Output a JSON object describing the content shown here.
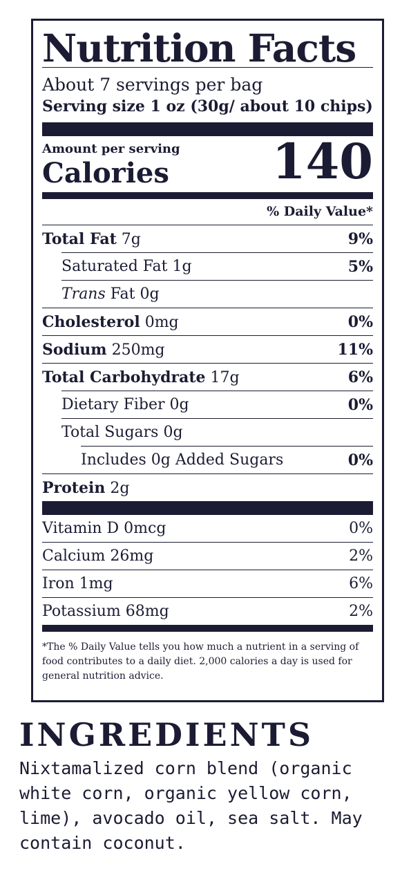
{
  "label": {
    "title": "Nutrition Facts",
    "servings": "About 7 servings per bag",
    "serving_size": "Serving size 1 oz (30g/ about 10 chips)",
    "amount_per_serving": "Amount per serving",
    "calories_label": "Calories",
    "calories_value": "140",
    "dv_header": "% Daily Value*",
    "nutrients": [
      {
        "name": "Total Fat",
        "amount": "7g",
        "pct": "9%"
      },
      {
        "name": "Saturated Fat",
        "amount": "1g",
        "pct": "5%"
      },
      {
        "name": "Trans",
        "suffix": "Fat",
        "amount": "0g",
        "pct": ""
      },
      {
        "name": "Cholesterol",
        "amount": "0mg",
        "pct": "0%"
      },
      {
        "name": "Sodium",
        "amount": "250mg",
        "pct": "11%"
      },
      {
        "name": "Total Carbohydrate",
        "amount": "17g",
        "pct": "6%"
      },
      {
        "name": "Dietary Fiber",
        "amount": "0g",
        "pct": "0%"
      },
      {
        "name": "Total Sugars",
        "amount": "0g",
        "pct": ""
      },
      {
        "name": "Includes 0g Added Sugars",
        "amount": "",
        "pct": "0%"
      },
      {
        "name": "Protein",
        "amount": "2g",
        "pct": ""
      }
    ],
    "vitamins": [
      {
        "label": "Vitamin D 0mcg",
        "pct": "0%"
      },
      {
        "label": "Calcium 26mg",
        "pct": "2%"
      },
      {
        "label": "Iron 1mg",
        "pct": "6%"
      },
      {
        "label": "Potassium 68mg",
        "pct": "2%"
      }
    ],
    "footnote": "*The % Daily Value tells you how much a nutrient in a serving of food contributes to a daily diet. 2,000 calories a day is used for general nutrition advice."
  },
  "ingredients": {
    "title": "INGREDIENTS",
    "text": "Nixtamalized corn blend (organic white corn, organic yellow corn, lime), avocado oil, sea salt. May contain coconut."
  }
}
